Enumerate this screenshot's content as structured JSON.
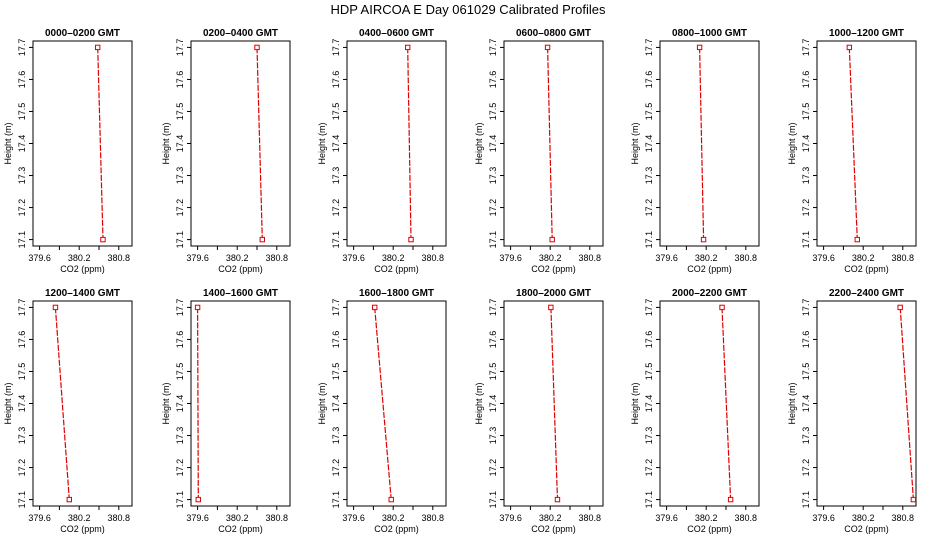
{
  "figure_title": "HDP  AIRCOA E  Day 061029  Calibrated Profiles",
  "colors": {
    "line": "#e00000",
    "marker": "#e00000",
    "axis": "#000000",
    "background": "#ffffff"
  },
  "chart_data": {
    "type": "line",
    "title": "HDP  AIRCOA E  Day 061029  Calibrated Profiles",
    "xlabel": "CO2 (ppm)",
    "ylabel": "Height (m)",
    "xlim": [
      379.5,
      381.0
    ],
    "ylim": [
      17.08,
      17.72
    ],
    "xticks": [
      "379.6",
      "380.2",
      "380.8"
    ],
    "yticks": [
      "17.1",
      "17.2",
      "17.3",
      "17.4",
      "17.5",
      "17.6",
      "17.7"
    ],
    "grid": false,
    "marker": "open-square",
    "panels": [
      {
        "title": "0000–0200 GMT",
        "points": [
          {
            "x": 380.48,
            "y": 17.7
          },
          {
            "x": 380.56,
            "y": 17.1
          }
        ]
      },
      {
        "title": "0200–0400 GMT",
        "points": [
          {
            "x": 380.5,
            "y": 17.7
          },
          {
            "x": 380.58,
            "y": 17.1
          }
        ]
      },
      {
        "title": "0400–0600 GMT",
        "points": [
          {
            "x": 380.42,
            "y": 17.7
          },
          {
            "x": 380.47,
            "y": 17.1
          }
        ]
      },
      {
        "title": "0600–0800 GMT",
        "points": [
          {
            "x": 380.16,
            "y": 17.7
          },
          {
            "x": 380.23,
            "y": 17.1
          }
        ]
      },
      {
        "title": "0800–1000 GMT",
        "points": [
          {
            "x": 380.1,
            "y": 17.7
          },
          {
            "x": 380.16,
            "y": 17.1
          }
        ]
      },
      {
        "title": "1000–1200 GMT",
        "points": [
          {
            "x": 379.99,
            "y": 17.7
          },
          {
            "x": 380.11,
            "y": 17.1
          }
        ]
      },
      {
        "title": "1200–1400 GMT",
        "points": [
          {
            "x": 379.84,
            "y": 17.7
          },
          {
            "x": 380.05,
            "y": 17.1
          }
        ]
      },
      {
        "title": "1400–1600 GMT",
        "points": [
          {
            "x": 379.6,
            "y": 17.7
          },
          {
            "x": 379.61,
            "y": 17.1
          }
        ]
      },
      {
        "title": "1600–1800 GMT",
        "points": [
          {
            "x": 379.92,
            "y": 17.7
          },
          {
            "x": 380.17,
            "y": 17.1
          }
        ]
      },
      {
        "title": "1800–2000 GMT",
        "points": [
          {
            "x": 380.21,
            "y": 17.7
          },
          {
            "x": 380.31,
            "y": 17.1
          }
        ]
      },
      {
        "title": "2000–2200 GMT",
        "points": [
          {
            "x": 380.44,
            "y": 17.7
          },
          {
            "x": 380.57,
            "y": 17.1
          }
        ]
      },
      {
        "title": "2200–2400 GMT",
        "points": [
          {
            "x": 380.76,
            "y": 17.7
          },
          {
            "x": 380.96,
            "y": 17.1
          }
        ]
      }
    ]
  }
}
